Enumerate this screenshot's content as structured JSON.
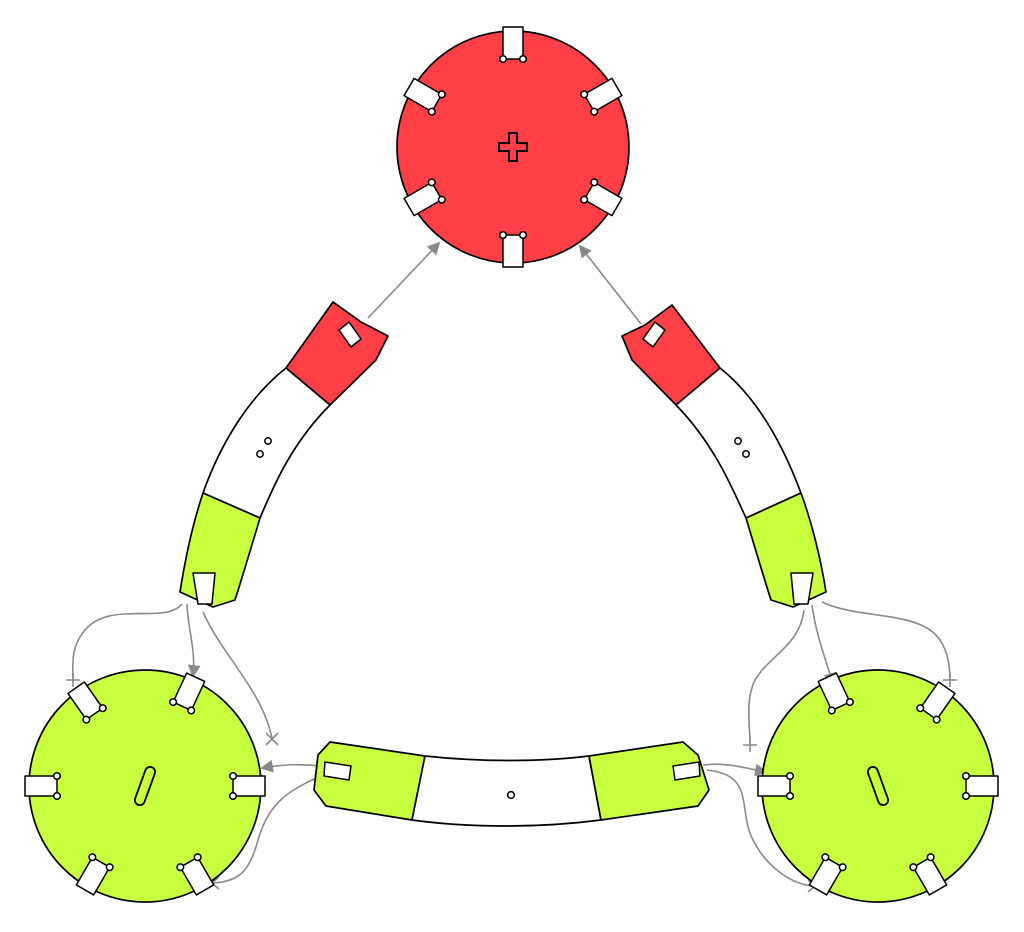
{
  "colors": {
    "red": "#ff3f46",
    "green": "#c8ff3f",
    "white": "#ffffff",
    "stroke": "#000000",
    "arrow": "#8a8a8a"
  },
  "nodes": [
    {
      "id": "top-disc",
      "color": "red",
      "mark": "plus"
    },
    {
      "id": "bottom-left-disc",
      "color": "green",
      "mark": "slash"
    },
    {
      "id": "bottom-right-disc",
      "color": "green",
      "mark": "slash"
    }
  ],
  "links": [
    {
      "id": "left-arc",
      "from": "red",
      "middle": "white",
      "to": "green",
      "holes": 2
    },
    {
      "id": "right-arc",
      "from": "red",
      "middle": "white",
      "to": "green",
      "holes": 2
    },
    {
      "id": "bottom-arc",
      "from": "green",
      "middle": "white",
      "to": "green",
      "holes": 1
    }
  ],
  "connections": [
    {
      "from": "left-arc",
      "to": "top-disc",
      "kind": "arrow"
    },
    {
      "from": "right-arc",
      "to": "top-disc",
      "kind": "arrow"
    },
    {
      "from": "left-arc",
      "to": "bottom-left-disc",
      "kind": "arrow"
    },
    {
      "from": "right-arc",
      "to": "bottom-right-disc",
      "kind": "arrow"
    },
    {
      "from": "bottom-arc",
      "to": "bottom-left-disc",
      "kind": "arrow"
    },
    {
      "from": "bottom-arc",
      "to": "bottom-right-disc",
      "kind": "arrow"
    },
    {
      "from": "left-arc",
      "to": "bottom-left-disc",
      "kind": "blocked"
    },
    {
      "from": "left-arc",
      "to": "bottom-left-disc",
      "kind": "blocked"
    },
    {
      "from": "right-arc",
      "to": "bottom-right-disc",
      "kind": "blocked"
    },
    {
      "from": "right-arc",
      "to": "bottom-right-disc",
      "kind": "blocked"
    },
    {
      "from": "bottom-arc",
      "to": "bottom-left-disc",
      "kind": "blocked"
    },
    {
      "from": "bottom-arc",
      "to": "bottom-right-disc",
      "kind": "blocked"
    }
  ]
}
